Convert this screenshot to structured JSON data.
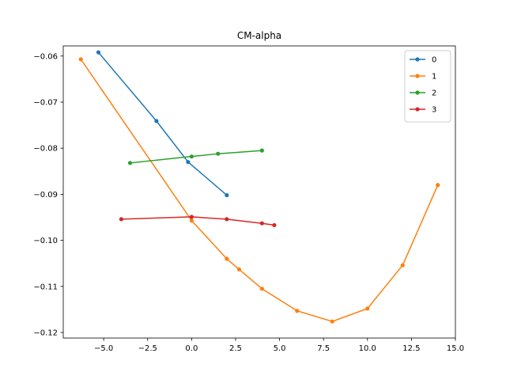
{
  "chart_data": {
    "type": "line",
    "title": "CM-alpha",
    "xlabel": "",
    "ylabel": "",
    "xlim": [
      -7.3,
      15.0
    ],
    "ylim": [
      -0.1212,
      -0.0578
    ],
    "xticks": [
      -5.0,
      -2.5,
      0.0,
      2.5,
      5.0,
      7.5,
      10.0,
      12.5,
      15.0
    ],
    "xtick_labels": [
      "−5.0",
      "−2.5",
      "0.0",
      "2.5",
      "5.0",
      "7.5",
      "10.0",
      "12.5",
      "15.0"
    ],
    "yticks": [
      -0.06,
      -0.07,
      -0.08,
      -0.09,
      -0.1,
      -0.11,
      -0.12
    ],
    "ytick_labels": [
      "−0.06",
      "−0.07",
      "−0.08",
      "−0.09",
      "−0.10",
      "−0.11",
      "−0.12"
    ],
    "grid": false,
    "legend_position": "top-right",
    "series": [
      {
        "name": "0",
        "color": "#1f77b4",
        "x": [
          -5.3,
          -2.0,
          -0.2,
          2.0
        ],
        "y": [
          -0.0592,
          -0.0741,
          -0.083,
          -0.0902
        ]
      },
      {
        "name": "1",
        "color": "#ff7f0e",
        "x": [
          -6.3,
          0.0,
          2.0,
          2.7,
          4.0,
          6.0,
          8.0,
          10.0,
          12.0,
          14.0
        ],
        "y": [
          -0.0607,
          -0.0957,
          -0.104,
          -0.1063,
          -0.1105,
          -0.1153,
          -0.1176,
          -0.1148,
          -0.1054,
          -0.088
        ]
      },
      {
        "name": "2",
        "color": "#2ca02c",
        "x": [
          -3.5,
          0.0,
          1.5,
          4.0
        ],
        "y": [
          -0.0832,
          -0.0818,
          -0.0812,
          -0.0805
        ]
      },
      {
        "name": "3",
        "color": "#d62728",
        "x": [
          -4.0,
          0.0,
          2.0,
          4.0,
          4.7
        ],
        "y": [
          -0.0954,
          -0.0949,
          -0.0954,
          -0.0963,
          -0.0967
        ]
      }
    ]
  }
}
